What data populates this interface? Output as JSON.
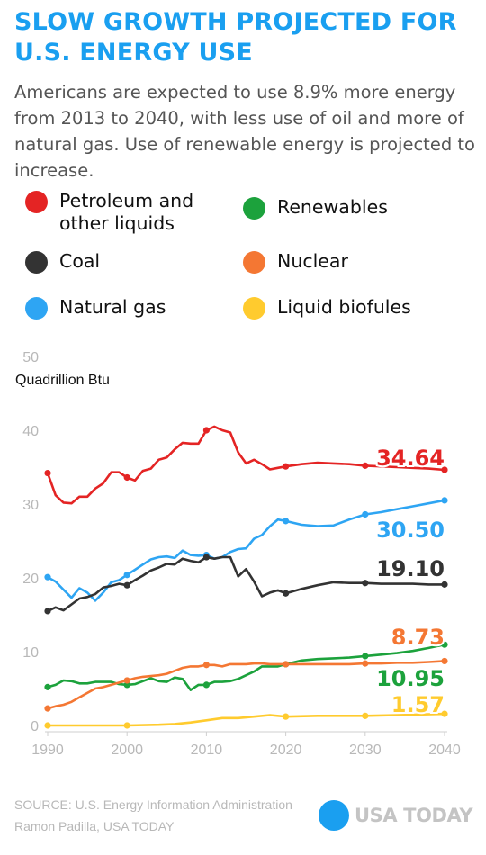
{
  "title": "SLOW GROWTH PROJECTED FOR U.S. ENERGY USE",
  "subtitle": "Americans are expected to use 8.9% more energy from 2013 to 2040, with less use of oil and more of natural gas. Use of renewable energy is projected to increase.",
  "legend": [
    {
      "label": "Petroleum and other liquids",
      "color": "#e42424"
    },
    {
      "label": "Renewables",
      "color": "#1ca23c"
    },
    {
      "label": "Coal",
      "color": "#333333"
    },
    {
      "label": "Nuclear",
      "color": "#f47733"
    },
    {
      "label": "Natural gas",
      "color": "#2ea5f3"
    },
    {
      "label": "Liquid biofules",
      "color": "#ffcb2e"
    }
  ],
  "source": "SOURCE: U.S. Energy Information Administration",
  "credit": "Ramon Padilla, USA TODAY",
  "brand": "USA TODAY",
  "chart_data": {
    "type": "line",
    "ylabel": "Quadrillion Btu",
    "xlim": [
      1990,
      2040
    ],
    "ylim": [
      0,
      50
    ],
    "x_ticks": [
      1990,
      2000,
      2010,
      2020,
      2030,
      2040
    ],
    "y_ticks": [
      0,
      10,
      20,
      30,
      40,
      50
    ],
    "grid": false,
    "legend_position": "top",
    "series": [
      {
        "name": "Petroleum and other liquids",
        "color": "#e42424",
        "end_label": "34.64",
        "dots": [
          1990,
          2000,
          2010,
          2020,
          2030,
          2040
        ],
        "x": [
          1990,
          1991,
          1992,
          1993,
          1994,
          1995,
          1996,
          1997,
          1998,
          1999,
          2000,
          2001,
          2002,
          2003,
          2004,
          2005,
          2006,
          2007,
          2008,
          2009,
          2010,
          2011,
          2012,
          2013,
          2014,
          2015,
          2016,
          2017,
          2018,
          2019,
          2020,
          2022,
          2024,
          2026,
          2028,
          2030,
          2032,
          2034,
          2036,
          2038,
          2040
        ],
        "y": [
          34.2,
          31.2,
          30.2,
          30.1,
          31.0,
          31.0,
          32.1,
          32.8,
          34.3,
          34.3,
          33.6,
          33.2,
          34.5,
          34.8,
          36.0,
          36.3,
          37.4,
          38.3,
          38.2,
          38.2,
          40.0,
          40.5,
          40.0,
          39.7,
          37.0,
          35.5,
          36.0,
          35.4,
          34.7,
          34.9,
          35.1,
          35.4,
          35.6,
          35.5,
          35.4,
          35.2,
          35.1,
          35.0,
          34.9,
          34.8,
          34.64
        ]
      },
      {
        "name": "Natural gas",
        "color": "#2ea5f3",
        "end_label": "30.50",
        "dots": [
          1990,
          2000,
          2010,
          2020,
          2030,
          2040
        ],
        "x": [
          1990,
          1991,
          1992,
          1993,
          1994,
          1995,
          1996,
          1997,
          1998,
          1999,
          2000,
          2001,
          2002,
          2003,
          2004,
          2005,
          2006,
          2007,
          2008,
          2009,
          2010,
          2011,
          2012,
          2013,
          2014,
          2015,
          2016,
          2017,
          2018,
          2019,
          2020,
          2022,
          2024,
          2026,
          2028,
          2030,
          2032,
          2034,
          2036,
          2038,
          2040
        ],
        "y": [
          20.1,
          19.5,
          18.4,
          17.3,
          18.6,
          18.0,
          16.9,
          18.0,
          19.4,
          19.7,
          20.4,
          21.1,
          21.8,
          22.5,
          22.8,
          22.9,
          22.7,
          23.7,
          23.1,
          23.0,
          23.1,
          22.6,
          22.8,
          23.5,
          23.9,
          24.0,
          25.3,
          25.8,
          27.0,
          27.9,
          27.7,
          27.2,
          27.0,
          27.1,
          27.9,
          28.6,
          28.9,
          29.3,
          29.7,
          30.1,
          30.5
        ]
      },
      {
        "name": "Coal",
        "color": "#333333",
        "end_label": "19.10",
        "dots": [
          1990,
          2000,
          2010,
          2020,
          2030,
          2040
        ],
        "x": [
          1990,
          1991,
          1992,
          1993,
          1994,
          1995,
          1996,
          1997,
          1998,
          1999,
          2000,
          2001,
          2002,
          2003,
          2004,
          2005,
          2006,
          2007,
          2008,
          2009,
          2010,
          2011,
          2012,
          2013,
          2014,
          2015,
          2016,
          2017,
          2018,
          2019,
          2020,
          2022,
          2024,
          2026,
          2028,
          2030,
          2032,
          2034,
          2036,
          2038,
          2040
        ],
        "y": [
          15.5,
          16.0,
          15.6,
          16.4,
          17.2,
          17.4,
          17.8,
          18.7,
          18.9,
          19.2,
          19.0,
          19.7,
          20.3,
          21.0,
          21.4,
          21.9,
          21.8,
          22.6,
          22.3,
          22.1,
          22.8,
          22.6,
          22.8,
          22.8,
          20.2,
          21.2,
          19.5,
          17.5,
          18.0,
          18.3,
          17.9,
          18.5,
          19.0,
          19.4,
          19.3,
          19.3,
          19.2,
          19.2,
          19.2,
          19.1,
          19.1
        ]
      },
      {
        "name": "Renewables",
        "color": "#1ca23c",
        "end_label": "10.95",
        "dots": [
          1990,
          2000,
          2010,
          2020,
          2030,
          2040
        ],
        "x": [
          1990,
          1991,
          1992,
          1993,
          1994,
          1995,
          1996,
          1997,
          1998,
          1999,
          2000,
          2001,
          2002,
          2003,
          2004,
          2005,
          2006,
          2007,
          2008,
          2009,
          2010,
          2011,
          2012,
          2013,
          2014,
          2015,
          2016,
          2017,
          2018,
          2019,
          2020,
          2022,
          2024,
          2026,
          2028,
          2030,
          2032,
          2034,
          2036,
          2038,
          2040
        ],
        "y": [
          5.2,
          5.5,
          6.1,
          6.0,
          5.7,
          5.7,
          5.9,
          5.9,
          5.9,
          5.6,
          5.5,
          5.6,
          6.0,
          6.4,
          6.0,
          5.9,
          6.5,
          6.3,
          4.8,
          5.5,
          5.5,
          5.9,
          5.9,
          6.0,
          6.3,
          6.8,
          7.3,
          8.0,
          8.0,
          8.0,
          8.3,
          8.8,
          9.0,
          9.1,
          9.2,
          9.4,
          9.6,
          9.8,
          10.1,
          10.5,
          10.95
        ]
      },
      {
        "name": "Nuclear",
        "color": "#f47733",
        "end_label": "8.73",
        "dots": [
          1990,
          2000,
          2010,
          2020,
          2030,
          2040
        ],
        "x": [
          1990,
          1991,
          1992,
          1993,
          1994,
          1995,
          1996,
          1997,
          1998,
          1999,
          2000,
          2001,
          2002,
          2003,
          2004,
          2005,
          2006,
          2007,
          2008,
          2009,
          2010,
          2011,
          2012,
          2013,
          2014,
          2015,
          2016,
          2017,
          2018,
          2019,
          2020,
          2022,
          2024,
          2026,
          2028,
          2030,
          2032,
          2034,
          2036,
          2038,
          2040
        ],
        "y": [
          2.3,
          2.6,
          2.8,
          3.2,
          3.8,
          4.4,
          5.0,
          5.2,
          5.5,
          5.8,
          6.1,
          6.4,
          6.6,
          6.7,
          6.8,
          7.0,
          7.4,
          7.8,
          8.0,
          8.0,
          8.2,
          8.2,
          8.0,
          8.3,
          8.3,
          8.3,
          8.4,
          8.4,
          8.3,
          8.3,
          8.3,
          8.3,
          8.3,
          8.3,
          8.3,
          8.4,
          8.4,
          8.5,
          8.5,
          8.6,
          8.73
        ]
      },
      {
        "name": "Liquid biofules",
        "color": "#ffcb2e",
        "end_label": "1.57",
        "dots": [
          1990,
          2000,
          2020,
          2030,
          2040
        ],
        "x": [
          1990,
          1995,
          2000,
          2004,
          2006,
          2008,
          2010,
          2012,
          2014,
          2016,
          2018,
          2020,
          2024,
          2028,
          2030,
          2034,
          2040
        ],
        "y": [
          0.0,
          0.0,
          0.0,
          0.1,
          0.2,
          0.4,
          0.7,
          1.0,
          1.0,
          1.2,
          1.4,
          1.2,
          1.3,
          1.3,
          1.3,
          1.4,
          1.57
        ]
      }
    ]
  }
}
